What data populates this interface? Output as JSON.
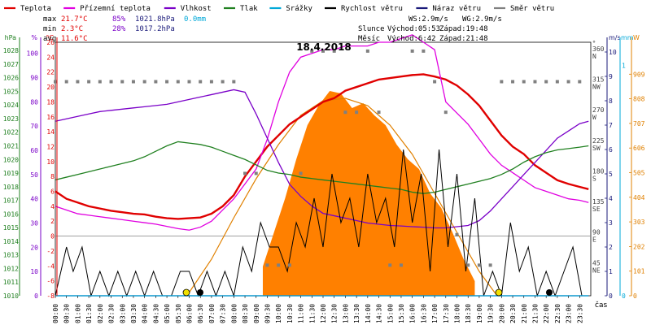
{
  "legend": [
    {
      "name": "Teplota",
      "color": "#e00000"
    },
    {
      "name": "Přízemní teplota",
      "color": "#e000e0"
    },
    {
      "name": "Vlhkost",
      "color": "#7a00c8"
    },
    {
      "name": "Tlak",
      "color": "#208020"
    },
    {
      "name": "Srážky",
      "color": "#00a8d8"
    },
    {
      "name": "Rychlost větru",
      "color": "#000000"
    },
    {
      "name": "Náraz větru",
      "color": "#1a1a7a"
    },
    {
      "name": "Směr větru",
      "color": "#808080"
    }
  ],
  "stats": {
    "max": {
      "label": "max",
      "temp": "21.7°C",
      "hum": "85%",
      "press": "1021.8hPa",
      "rain": "0.0mm"
    },
    "min": {
      "label": "min",
      "temp": "2.3°C",
      "hum": "28%",
      "press": "1017.2hPa"
    },
    "avg": {
      "label": "avg",
      "temp": "11.6°C"
    }
  },
  "wind_info": {
    "ws": "WS:2.9m/s",
    "wg": "WG:2.9m/s"
  },
  "sun_info": {
    "label": "Slunce",
    "rise": "Východ:05:53",
    "set": "Západ:19:48"
  },
  "moon_info": {
    "label": "Měsíc",
    "rise": "Východ:6:42",
    "set": "Západ:21:48"
  },
  "chart_data": {
    "type": "line",
    "title": "18.4.2018",
    "xlabel": "čas",
    "x_ticks": [
      "00:00",
      "00:30",
      "01:00",
      "01:30",
      "02:00",
      "02:30",
      "03:00",
      "03:30",
      "04:00",
      "04:30",
      "05:00",
      "05:30",
      "06:00",
      "06:30",
      "07:00",
      "07:30",
      "08:00",
      "08:30",
      "09:00",
      "09:30",
      "10:00",
      "10:30",
      "11:00",
      "11:30",
      "12:00",
      "12:30",
      "13:00",
      "13:30",
      "14:00",
      "14:30",
      "15:00",
      "15:30",
      "16:00",
      "16:30",
      "17:00",
      "17:30",
      "18:00",
      "18:30",
      "19:00",
      "19:30",
      "20:00",
      "20:30",
      "21:00",
      "21:30",
      "22:00",
      "22:30",
      "23:00",
      "23:30"
    ],
    "axes": {
      "hpa": {
        "label": "hPa",
        "color": "#208020",
        "ticks": [
          1010,
          1011,
          1012,
          1013,
          1014,
          1015,
          1016,
          1017,
          1018,
          1019,
          1020,
          1021,
          1022,
          1023,
          1024,
          1025,
          1026,
          1027,
          1028
        ]
      },
      "pct": {
        "label": "%",
        "color": "#7a00c8",
        "ticks": [
          0,
          10,
          20,
          30,
          40,
          50,
          60,
          70,
          80,
          90,
          100
        ]
      },
      "temp": {
        "label": "°C",
        "color": "#e00000",
        "ticks": [
          -8,
          -6,
          -4,
          -2,
          0,
          2,
          4,
          6,
          8,
          10,
          12,
          14,
          16,
          18,
          20,
          22,
          24,
          26
        ]
      },
      "dir": {
        "label": "°",
        "color": "#404040",
        "ticks": [
          {
            "deg": "45",
            "dir": "NE"
          },
          {
            "deg": "90",
            "dir": "E"
          },
          {
            "deg": "135",
            "dir": "SE"
          },
          {
            "deg": "180",
            "dir": "S"
          },
          {
            "deg": "225",
            "dir": "SW"
          },
          {
            "deg": "270",
            "dir": "W"
          },
          {
            "deg": "315",
            "dir": "NW"
          },
          {
            "deg": "360",
            "dir": "N"
          }
        ]
      },
      "ms": {
        "label": "m/s",
        "color": "#1a1a7a",
        "ticks": [
          0,
          1,
          2,
          3,
          4,
          5,
          6,
          7,
          8,
          9,
          10
        ]
      },
      "mm": {
        "label": "mm",
        "color": "#00a8d8",
        "ticks": [
          0,
          1
        ]
      },
      "w": {
        "label": "W",
        "color": "#e08000",
        "ticks": [
          0,
          101,
          202,
          303,
          404,
          505,
          606,
          707,
          808,
          909
        ]
      }
    },
    "series": [
      {
        "name": "Teplota",
        "color": "#e00000",
        "axis": "temp",
        "x": [
          0,
          0.5,
          1,
          1.5,
          2,
          2.5,
          3,
          3.5,
          4,
          4.5,
          5,
          5.5,
          6,
          6.5,
          7,
          7.5,
          8,
          8.5,
          9,
          9.5,
          10,
          10.5,
          11,
          11.5,
          12,
          12.5,
          13,
          13.5,
          14,
          14.5,
          15,
          15.5,
          16,
          16.5,
          17,
          17.5,
          18,
          18.5,
          19,
          19.5,
          20,
          20.5,
          21,
          21.5,
          22,
          22.5,
          23,
          23.5,
          23.9
        ],
        "y": [
          6,
          5,
          4.5,
          4,
          3.7,
          3.4,
          3.2,
          3,
          2.9,
          2.6,
          2.4,
          2.3,
          2.4,
          2.5,
          3,
          4,
          5.5,
          8,
          10,
          12,
          13.5,
          15,
          16,
          17,
          18,
          18.5,
          19.5,
          20,
          20.5,
          21,
          21.2,
          21.4,
          21.6,
          21.7,
          21.4,
          21,
          20.2,
          19,
          17.5,
          15.5,
          13.5,
          12,
          11,
          9.5,
          8.5,
          7.5,
          7,
          6.6,
          6.3
        ]
      },
      {
        "name": "Přízemní teplota",
        "color": "#e000e0",
        "axis": "temp",
        "x": [
          0,
          0.5,
          1,
          1.5,
          2,
          2.5,
          3,
          3.5,
          4,
          4.5,
          5,
          5.5,
          6,
          6.5,
          7,
          7.5,
          8,
          8.5,
          9,
          9.5,
          10,
          10.5,
          11,
          11.5,
          12,
          12.5,
          13,
          13.5,
          14,
          14.5,
          15,
          15.5,
          16,
          16.5,
          17,
          17.5,
          18,
          18.5,
          19,
          19.5,
          20,
          20.5,
          21,
          21.5,
          22,
          22.5,
          23,
          23.5,
          23.9
        ],
        "y": [
          4,
          3.5,
          3,
          2.8,
          2.6,
          2.4,
          2.2,
          2,
          1.8,
          1.6,
          1.3,
          1,
          0.8,
          1.2,
          2,
          3.5,
          5,
          7,
          9,
          13,
          18,
          22,
          24,
          24.5,
          25,
          25,
          25.5,
          25.5,
          25.5,
          26,
          26,
          26.5,
          27,
          26,
          25,
          18,
          16.5,
          15,
          13,
          11,
          9.5,
          8.5,
          7.5,
          6.5,
          6,
          5.5,
          5,
          4.8,
          4.5
        ]
      },
      {
        "name": "Vlhkost",
        "color": "#7a00c8",
        "axis": "pct",
        "x": [
          0,
          0.5,
          1,
          1.5,
          2,
          2.5,
          3,
          3.5,
          4,
          4.5,
          5,
          5.5,
          6,
          6.5,
          7,
          7.5,
          8,
          8.5,
          9,
          9.5,
          10,
          10.5,
          11,
          11.5,
          12,
          12.5,
          13,
          13.5,
          14,
          14.5,
          15,
          15.5,
          16,
          16.5,
          17,
          17.5,
          18,
          18.5,
          19,
          19.5,
          20,
          20.5,
          21,
          21.5,
          22,
          22.5,
          23,
          23.5,
          23.9
        ],
        "y": [
          72,
          73,
          74,
          75,
          76,
          76.5,
          77,
          77.5,
          78,
          78.5,
          79,
          80,
          81,
          82,
          83,
          84,
          85,
          84,
          75,
          65,
          55,
          46,
          41,
          37,
          34,
          33,
          32,
          31,
          30,
          29.5,
          29,
          28.8,
          28.5,
          28.3,
          28,
          28,
          28.5,
          29,
          31,
          35,
          40,
          45,
          50,
          55,
          60,
          65,
          68,
          71,
          72
        ]
      },
      {
        "name": "Tlak",
        "color": "#208020",
        "axis": "hpa",
        "x": [
          0,
          0.5,
          1,
          1.5,
          2,
          2.5,
          3,
          3.5,
          4,
          4.5,
          5,
          5.5,
          6,
          6.5,
          7,
          7.5,
          8,
          8.5,
          9,
          9.5,
          10,
          10.5,
          11,
          11.5,
          12,
          12.5,
          13,
          13.5,
          14,
          14.5,
          15,
          15.5,
          16,
          16.5,
          17,
          17.5,
          18,
          18.5,
          19,
          19.5,
          20,
          20.5,
          21,
          21.5,
          22,
          22.5,
          23,
          23.5,
          23.9
        ],
        "y": [
          1018.5,
          1018.7,
          1018.9,
          1019.1,
          1019.3,
          1019.5,
          1019.7,
          1019.9,
          1020.2,
          1020.6,
          1021,
          1021.3,
          1021.2,
          1021.1,
          1020.9,
          1020.6,
          1020.3,
          1020,
          1019.6,
          1019.2,
          1019,
          1018.9,
          1018.7,
          1018.6,
          1018.5,
          1018.4,
          1018.3,
          1018.2,
          1018.1,
          1018,
          1017.9,
          1017.8,
          1017.6,
          1017.5,
          1017.6,
          1017.8,
          1018,
          1018.2,
          1018.4,
          1018.6,
          1018.9,
          1019.3,
          1019.8,
          1020.2,
          1020.5,
          1020.7,
          1020.8,
          1020.9,
          1021
        ]
      },
      {
        "name": "Rychlost větru",
        "color": "#000000",
        "axis": "ms",
        "x": [
          0,
          0.5,
          0.8,
          1.2,
          1.6,
          2,
          2.4,
          2.8,
          3.2,
          3.6,
          4,
          4.4,
          4.8,
          5.2,
          5.6,
          6,
          6.4,
          6.8,
          7.2,
          7.6,
          8,
          8.4,
          8.8,
          9.2,
          9.6,
          10,
          10.4,
          10.8,
          11.2,
          11.6,
          12,
          12.4,
          12.8,
          13.2,
          13.6,
          14,
          14.4,
          14.8,
          15.2,
          15.6,
          16,
          16.4,
          16.8,
          17.2,
          17.6,
          18,
          18.4,
          18.8,
          19.2,
          19.6,
          20,
          20.4,
          20.8,
          21.2,
          21.6,
          22,
          22.4,
          22.8,
          23.2,
          23.6,
          23.9
        ],
        "y": [
          0,
          2,
          1,
          2,
          0,
          1,
          0,
          1,
          0,
          1,
          0,
          1,
          0,
          0,
          1,
          1,
          0,
          1,
          0,
          1,
          0,
          2,
          1,
          3,
          2,
          2,
          1,
          3,
          2,
          4,
          2,
          5,
          3,
          4,
          2,
          5,
          3,
          4,
          2,
          6,
          3,
          5,
          1,
          6,
          2,
          5,
          1,
          4,
          0,
          1,
          0,
          3,
          1,
          2,
          0,
          1,
          0,
          1,
          2,
          0,
          0
        ]
      },
      {
        "name": "Náraz větru",
        "color": "#1a1a7a",
        "axis": "ms",
        "x": [
          0,
          6,
          12,
          18,
          23.9
        ],
        "y": [
          0,
          0,
          0,
          0,
          0
        ]
      },
      {
        "name": "Směr větru",
        "color": "#808080",
        "axis": "dir",
        "marker": "square",
        "x": [
          0,
          0.5,
          1,
          1.5,
          2,
          2.5,
          3,
          3.5,
          4,
          4.5,
          5,
          5.5,
          6,
          6.5,
          7,
          7.5,
          8,
          8.5,
          9,
          9.5,
          10,
          10.5,
          11,
          11.5,
          12,
          12.5,
          13,
          13.5,
          14,
          14.5,
          15,
          15.5,
          16,
          16.5,
          17,
          17.5,
          18,
          18.5,
          19,
          19.5,
          20,
          20.5,
          21,
          21.5,
          22,
          22.5,
          23,
          23.5
        ],
        "y": [
          315,
          315,
          315,
          315,
          315,
          315,
          315,
          315,
          315,
          315,
          315,
          315,
          315,
          315,
          315,
          315,
          315,
          180,
          180,
          45,
          45,
          45,
          180,
          360,
          360,
          360,
          270,
          270,
          360,
          270,
          45,
          45,
          360,
          360,
          315,
          270,
          90,
          45,
          45,
          45,
          315,
          315,
          315,
          315,
          315,
          315,
          315,
          315
        ]
      },
      {
        "name": "Srážky",
        "color": "#00a8d8",
        "axis": "mm",
        "x": [
          0,
          23.9
        ],
        "y": [
          0,
          0
        ]
      }
    ],
    "radiation": {
      "name": "Radiation",
      "color": "#ff8000",
      "axis": "w",
      "x": [
        9.3,
        9.8,
        10.3,
        10.8,
        11.3,
        11.8,
        12.3,
        12.8,
        13.3,
        13.8,
        14.3,
        14.8,
        15.3,
        15.8,
        16.3,
        16.8,
        17.3,
        17.8,
        18.3,
        18.8
      ],
      "y": [
        120,
        260,
        400,
        560,
        700,
        780,
        840,
        830,
        770,
        790,
        740,
        700,
        620,
        560,
        520,
        420,
        360,
        260,
        150,
        60
      ]
    },
    "solar_curve": {
      "color": "#e08000",
      "axis": "w",
      "x": [
        5.9,
        7,
        8,
        9,
        10,
        11,
        12,
        13,
        14,
        15,
        16,
        17,
        18,
        19,
        19.8
      ],
      "y": [
        0,
        150,
        320,
        480,
        620,
        740,
        800,
        810,
        780,
        700,
        580,
        420,
        260,
        100,
        0
      ]
    }
  }
}
